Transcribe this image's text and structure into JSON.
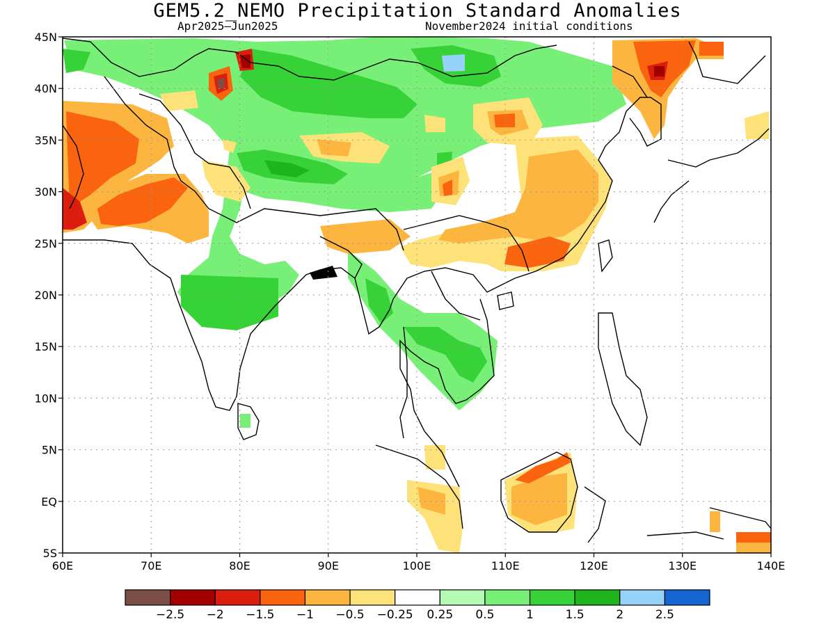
{
  "title": "GEM5.2_NEMO Precipitation Standard Anomalies",
  "period": "Apr2025–Jun2025",
  "initial_conditions": "November2024 initial conditions",
  "map": {
    "lon_range": [
      60,
      140
    ],
    "lat_range": [
      -5,
      45
    ],
    "lon_ticks": [
      {
        "v": 60,
        "label": "60E"
      },
      {
        "v": 70,
        "label": "70E"
      },
      {
        "v": 80,
        "label": "80E"
      },
      {
        "v": 90,
        "label": "90E"
      },
      {
        "v": 100,
        "label": "100E"
      },
      {
        "v": 110,
        "label": "110E"
      },
      {
        "v": 120,
        "label": "120E"
      },
      {
        "v": 130,
        "label": "130E"
      },
      {
        "v": 140,
        "label": "140E"
      }
    ],
    "lat_ticks": [
      {
        "v": 45,
        "label": "45N"
      },
      {
        "v": 40,
        "label": "40N"
      },
      {
        "v": 35,
        "label": "35N"
      },
      {
        "v": 30,
        "label": "30N"
      },
      {
        "v": 25,
        "label": "25N"
      },
      {
        "v": 20,
        "label": "20N"
      },
      {
        "v": 15,
        "label": "15N"
      },
      {
        "v": 10,
        "label": "10N"
      },
      {
        "v": 5,
        "label": "5N"
      },
      {
        "v": 0,
        "label": "EQ"
      },
      {
        "v": -5,
        "label": "5S"
      }
    ],
    "gridlines": true
  },
  "colorbar": {
    "colors": [
      "#7b4f45",
      "#a20000",
      "#dc1e0f",
      "#fa640f",
      "#fcb53f",
      "#fde27a",
      "#ffffff",
      "#b4fab4",
      "#78f078",
      "#37d237",
      "#1eb41e",
      "#96d2fa",
      "#1464d2"
    ],
    "labels": [
      "−2.5",
      "−2",
      "−1.5",
      "−1",
      "−0.5",
      "−0.25",
      "0.25",
      "0.5",
      "1",
      "1.5",
      "2",
      "2.5"
    ]
  }
}
